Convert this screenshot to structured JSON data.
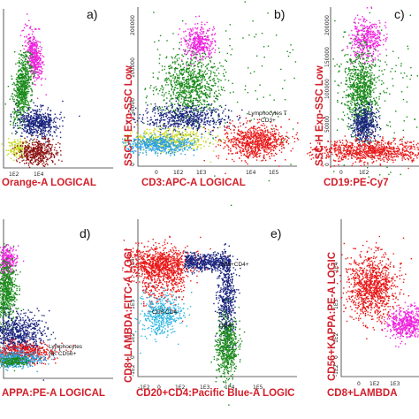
{
  "figure": {
    "panels": [
      {
        "id": "a",
        "label": "a)",
        "x_axis": "Orange-A LOGICAL"
      },
      {
        "id": "b",
        "label": "b)",
        "x_axis": "CD3:APC-A LOGICAL",
        "y_axis": "SSC-H Exp-SSC Low",
        "annotation": [
          "Lymphocytes T",
          "CD3+"
        ]
      },
      {
        "id": "c",
        "label": "c)",
        "x_axis": "CD19:PE-Cy7",
        "y_axis": "SSC-H Exp-SSC Low"
      },
      {
        "id": "d",
        "label": "d)",
        "x_axis": "APPA:PE-A LOGICAL",
        "annotation": [
          "Lymphocytes",
          "NK CD56+"
        ]
      },
      {
        "id": "e",
        "label": "e)",
        "x_axis": "CD20+CD4:Pacific Blue-A LOGIC",
        "y_axis": "CD8+LAMBDA:FITC-A LOGI",
        "annotation_cd8cd4": "CD8+CD4+",
        "annotation_cd8neg": "CD8-CD4-",
        "annotation_cd4": "CD4+"
      },
      {
        "id": "f",
        "label": "",
        "x_axis": "CD8+LAMBDA",
        "y_axis": "CD56+KAPPA:PE-A LOGIC"
      }
    ]
  },
  "chart_data": [
    {
      "type": "scatter",
      "panel": "a",
      "title": "",
      "xlabel": "Orange-A LOGICAL",
      "ylabel": "",
      "x_ticks": [
        "1E2",
        "1E4"
      ],
      "series": [
        {
          "color": "#ee22dd",
          "points": [
            [
              150,
              200000
            ],
            [
              180,
              185000
            ],
            [
              120,
              175000
            ]
          ]
        },
        {
          "color": "#1a8a1a",
          "points": [
            [
              80,
              100000
            ],
            [
              100,
              80000
            ],
            [
              60,
              60000
            ]
          ]
        },
        {
          "color": "#1a237e",
          "points": [
            [
              2000,
              25000
            ],
            [
              3000,
              20000
            ]
          ]
        },
        {
          "color": "#8b1010",
          "points": [
            [
              3000,
              5000
            ],
            [
              4000,
              3000
            ]
          ]
        },
        {
          "color": "#c8d820",
          "points": [
            [
              50,
              8000
            ]
          ]
        }
      ]
    },
    {
      "type": "scatter",
      "panel": "b",
      "title": "",
      "xlabel": "CD3:APC-A LOGICAL",
      "ylabel": "SSC-H Exp-SSC Low",
      "x_ticks": [
        "0",
        "1E2",
        "1E3",
        "1E4",
        "1E5"
      ],
      "y_ticks": [
        "200000",
        "100000",
        "50000",
        "0"
      ],
      "series": [
        {
          "color": "#ee22dd",
          "points": [
            [
              500,
              200000
            ]
          ]
        },
        {
          "color": "#1a8a1a",
          "points": [
            [
              300,
              100000
            ]
          ]
        },
        {
          "color": "#1a237e",
          "points": [
            [
              200,
              40000
            ]
          ]
        },
        {
          "color": "#2aa0e0",
          "points": [
            [
              20,
              15000
            ]
          ]
        },
        {
          "color": "#c8d820",
          "points": [
            [
              100,
              15000
            ]
          ]
        },
        {
          "color": "#e81818",
          "points": [
            [
              20000,
              10000
            ]
          ]
        }
      ]
    },
    {
      "type": "scatter",
      "panel": "c",
      "title": "",
      "xlabel": "CD19:PE-Cy7",
      "ylabel": "SSC-H Exp-SSC Low",
      "x_ticks": [
        "0",
        "1E2"
      ],
      "y_ticks": [
        "200000",
        "150000",
        "100000",
        "50000",
        "0"
      ],
      "series": [
        {
          "color": "#ee22dd",
          "points": [
            [
              300,
              190000
            ]
          ]
        },
        {
          "color": "#1a8a1a",
          "points": [
            [
              200,
              100000
            ]
          ]
        },
        {
          "color": "#1a237e",
          "points": [
            [
              300,
              35000
            ]
          ]
        },
        {
          "color": "#e81818",
          "points": [
            [
              100,
              10000
            ]
          ]
        }
      ]
    },
    {
      "type": "scatter",
      "panel": "d",
      "title": "",
      "xlabel": "APPA:PE-A LOGICAL",
      "ylabel": "",
      "series": [
        {
          "color": "#ee22dd",
          "points": [
            [
              50,
              200000
            ]
          ]
        },
        {
          "color": "#1a8a1a",
          "points": [
            [
              50,
              100000
            ]
          ]
        },
        {
          "color": "#1a237e",
          "points": [
            [
              100,
              35000
            ]
          ]
        },
        {
          "color": "#2aa0e0",
          "points": [
            [
              100,
              10000
            ]
          ]
        },
        {
          "color": "#e81818",
          "points": [
            [
              200,
              10000
            ]
          ]
        }
      ]
    },
    {
      "type": "scatter",
      "panel": "e",
      "title": "",
      "xlabel": "CD20+CD4:Pacific Blue-A LOGIC",
      "ylabel": "CD8+LAMBDA:FITC-A LOGI",
      "x_ticks": [
        "-1E2",
        "0",
        "1E2",
        "1E3",
        "1E4",
        "1E5"
      ],
      "y_ticks": [
        "1E4",
        "1E3",
        "1E2",
        "0",
        "-1E2"
      ],
      "series": [
        {
          "color": "#e81818",
          "points": [
            [
              50,
              10000
            ]
          ]
        },
        {
          "color": "#1a237e",
          "points": [
            [
              5000,
              10000
            ]
          ]
        },
        {
          "color": "#2ab4e0",
          "points": [
            [
              20,
              50
            ]
          ]
        },
        {
          "color": "#1a8a1a",
          "points": [
            [
              10000,
              80
            ]
          ]
        }
      ]
    },
    {
      "type": "scatter",
      "panel": "f",
      "title": "",
      "xlabel": "CD8+LAMBDA",
      "ylabel": "CD56+KAPPA:PE-A LOGIC",
      "x_ticks": [
        "0",
        "1E2",
        "1E3"
      ],
      "y_ticks": [
        "1E4",
        "1E3",
        "1E2",
        "0",
        "-1E2"
      ],
      "series": [
        {
          "color": "#e81818",
          "points": [
            [
              100,
              3000
            ]
          ]
        },
        {
          "color": "#ee22dd",
          "points": [
            [
              2000,
              500
            ]
          ]
        }
      ]
    }
  ]
}
